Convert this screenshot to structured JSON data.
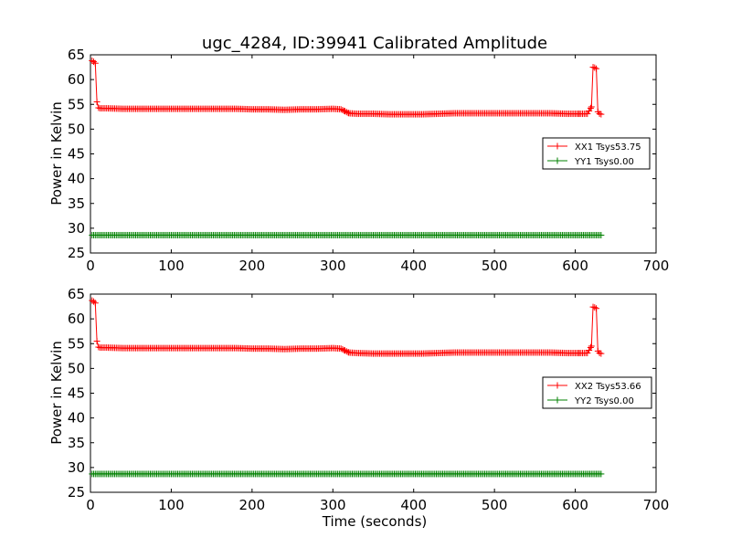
{
  "chart_data": [
    {
      "type": "line",
      "title": "ugc_4284, ID:39941 Calibrated Amplitude",
      "xlabel": "",
      "ylabel": "Power in Kelvin",
      "xlim": [
        0,
        700
      ],
      "ylim": [
        25,
        65
      ],
      "xticks": [
        0,
        100,
        200,
        300,
        400,
        500,
        600,
        700
      ],
      "yticks": [
        25,
        30,
        35,
        40,
        45,
        50,
        55,
        60,
        65
      ],
      "grid": false,
      "legend": "center-right",
      "series": [
        {
          "name": "XX1 Tsys53.75",
          "color": "#ff0000",
          "marker": "plus",
          "x": [
            2,
            4,
            6,
            8,
            10,
            12,
            20,
            40,
            60,
            80,
            100,
            120,
            140,
            160,
            180,
            200,
            220,
            240,
            260,
            280,
            300,
            310,
            315,
            320,
            330,
            350,
            370,
            390,
            410,
            430,
            450,
            470,
            490,
            510,
            530,
            550,
            570,
            590,
            605,
            615,
            620,
            622,
            624,
            626,
            628,
            630,
            632
          ],
          "y": [
            63.8,
            63.6,
            63.3,
            55.5,
            54.3,
            54.2,
            54.2,
            54.1,
            54.1,
            54.1,
            54.1,
            54.1,
            54.1,
            54.1,
            54.1,
            54.0,
            54.0,
            53.9,
            54.0,
            54.0,
            54.1,
            54.0,
            53.6,
            53.2,
            53.1,
            53.1,
            53.0,
            53.0,
            53.0,
            53.1,
            53.2,
            53.2,
            53.2,
            53.2,
            53.2,
            53.2,
            53.2,
            53.1,
            53.1,
            53.1,
            54.5,
            62.5,
            62.4,
            62.2,
            53.5,
            53.1,
            53.0
          ]
        },
        {
          "name": "YY1 Tsys0.00",
          "color": "#008000",
          "marker": "plus",
          "x": [
            2,
            20,
            40,
            60,
            80,
            100,
            120,
            140,
            160,
            180,
            200,
            220,
            240,
            260,
            280,
            300,
            320,
            340,
            360,
            380,
            400,
            420,
            440,
            460,
            480,
            500,
            520,
            540,
            560,
            580,
            600,
            620,
            632
          ],
          "y": [
            28.6,
            28.6,
            28.6,
            28.6,
            28.6,
            28.6,
            28.6,
            28.6,
            28.6,
            28.6,
            28.6,
            28.6,
            28.6,
            28.6,
            28.6,
            28.6,
            28.6,
            28.6,
            28.6,
            28.6,
            28.6,
            28.6,
            28.6,
            28.6,
            28.6,
            28.6,
            28.6,
            28.6,
            28.6,
            28.6,
            28.6,
            28.6,
            28.6
          ]
        }
      ]
    },
    {
      "type": "line",
      "title": "",
      "xlabel": "Time (seconds)",
      "ylabel": "Power in Kelvin",
      "xlim": [
        0,
        700
      ],
      "ylim": [
        25,
        65
      ],
      "xticks": [
        0,
        100,
        200,
        300,
        400,
        500,
        600,
        700
      ],
      "yticks": [
        25,
        30,
        35,
        40,
        45,
        50,
        55,
        60,
        65
      ],
      "grid": false,
      "legend": "center-right",
      "series": [
        {
          "name": "XX2 Tsys53.66",
          "color": "#ff0000",
          "marker": "plus",
          "x": [
            2,
            4,
            6,
            8,
            10,
            12,
            20,
            40,
            60,
            80,
            100,
            120,
            140,
            160,
            180,
            200,
            220,
            240,
            260,
            280,
            300,
            310,
            315,
            320,
            330,
            350,
            370,
            390,
            410,
            430,
            450,
            470,
            490,
            510,
            530,
            550,
            570,
            590,
            605,
            615,
            620,
            622,
            624,
            626,
            628,
            630,
            632
          ],
          "y": [
            63.7,
            63.5,
            63.2,
            55.5,
            54.3,
            54.2,
            54.2,
            54.1,
            54.1,
            54.1,
            54.1,
            54.1,
            54.1,
            54.1,
            54.1,
            54.0,
            54.0,
            53.9,
            54.0,
            54.0,
            54.1,
            54.0,
            53.6,
            53.2,
            53.1,
            53.0,
            53.0,
            53.0,
            53.0,
            53.1,
            53.2,
            53.2,
            53.2,
            53.2,
            53.2,
            53.2,
            53.2,
            53.1,
            53.1,
            53.1,
            54.5,
            62.4,
            62.3,
            62.1,
            53.5,
            53.1,
            53.0
          ]
        },
        {
          "name": "YY2 Tsys0.00",
          "color": "#008000",
          "marker": "plus",
          "x": [
            2,
            20,
            40,
            60,
            80,
            100,
            120,
            140,
            160,
            180,
            200,
            220,
            240,
            260,
            280,
            300,
            320,
            340,
            360,
            380,
            400,
            420,
            440,
            460,
            480,
            500,
            520,
            540,
            560,
            580,
            600,
            620,
            632
          ],
          "y": [
            28.7,
            28.7,
            28.7,
            28.7,
            28.7,
            28.7,
            28.7,
            28.7,
            28.7,
            28.7,
            28.7,
            28.7,
            28.7,
            28.7,
            28.7,
            28.7,
            28.7,
            28.7,
            28.7,
            28.7,
            28.7,
            28.7,
            28.7,
            28.7,
            28.7,
            28.7,
            28.7,
            28.7,
            28.7,
            28.7,
            28.7,
            28.7,
            28.7
          ]
        }
      ]
    }
  ]
}
